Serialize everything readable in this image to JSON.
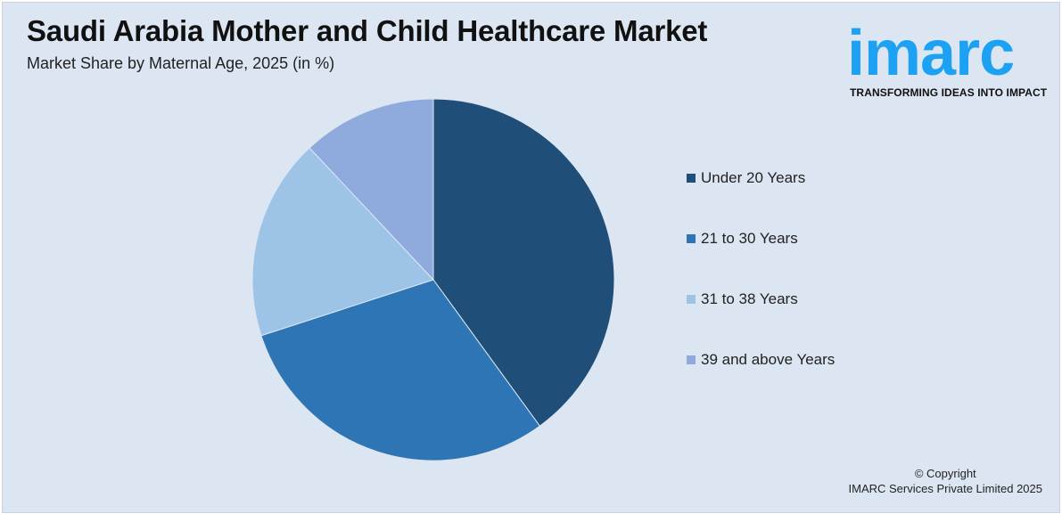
{
  "header": {
    "title": "Saudi Arabia Mother and Child Healthcare Market",
    "subtitle": "Market Share by Maternal Age, 2025 (in %)"
  },
  "logo": {
    "wordmark": "imarc",
    "tagline": "TRANSFORMING IDEAS INTO IMPACT",
    "color": "#1da1f2"
  },
  "footer": {
    "copyright_line1": "© Copyright",
    "copyright_line2": "IMARC Services Private Limited 2025"
  },
  "chart_data": {
    "type": "pie",
    "title": "Saudi Arabia Mother and Child Healthcare Market",
    "subtitle": "Market Share by Maternal Age, 2025 (in %)",
    "legend_position": "right",
    "start_angle": "12 o'clock",
    "direction": "clockwise",
    "slices": [
      {
        "label": "Under 20 Years",
        "value": 40,
        "color": "#1f4e79"
      },
      {
        "label": "21 to 30 Years",
        "value": 30,
        "color": "#2e75b6"
      },
      {
        "label": "31 to 38 Years",
        "value": 18,
        "color": "#9dc3e6"
      },
      {
        "label": "39 and above Years",
        "value": 12,
        "color": "#8faadc"
      }
    ]
  }
}
